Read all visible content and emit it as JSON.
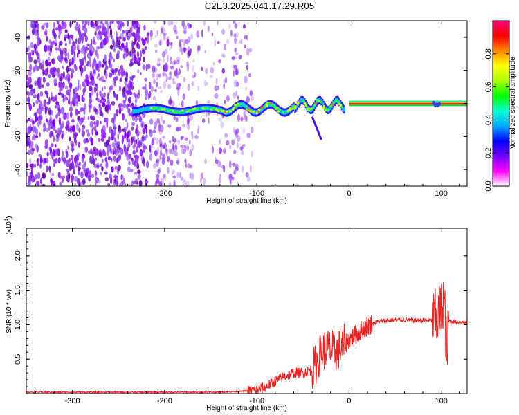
{
  "title": "C2E3.2025.041.17.29.R05",
  "colors": {
    "spectrum_dot": "#8a2be2",
    "snr_line": "#ee2222",
    "colorbar": [
      "#ffffff",
      "#ff00ff",
      "#7000ff",
      "#0000ff",
      "#00aaff",
      "#00ffcc",
      "#00ff00",
      "#aaff00",
      "#ffff00",
      "#ff8800",
      "#ff0000",
      "#ff0080"
    ]
  },
  "chart_data": [
    {
      "type": "heatmap",
      "title": "",
      "xlabel": "Height of straight line (km)",
      "ylabel": "Frequency (Hz)",
      "xlim": [
        -350,
        128
      ],
      "ylim": [
        -50,
        50
      ],
      "xticks": [
        -300,
        -200,
        -100,
        0,
        100
      ],
      "yticks": [
        -40,
        -20,
        0,
        20,
        40
      ],
      "colorbar": {
        "label": "Normalized spectral amplitude",
        "range": [
          0,
          1
        ],
        "ticks": [
          "0.0",
          "0.2",
          "0.4",
          "0.6",
          "0.8"
        ]
      },
      "features": [
        {
          "description": "broadband noise",
          "x_range": [
            -350,
            -110
          ],
          "y_range": [
            -50,
            50
          ]
        },
        {
          "description": "signal trace near 0 Hz",
          "x_range": [
            -235,
            -5
          ],
          "y_center": 0
        },
        {
          "description": "strong constant line at 0 Hz",
          "x_range": [
            0,
            128
          ],
          "y_center": 0
        },
        {
          "description": "branch",
          "points": [
            [
              -40,
              -8
            ],
            [
              -30,
              -22
            ]
          ]
        }
      ]
    },
    {
      "type": "line",
      "title": "",
      "xlabel": "Height of straight line (km)",
      "ylabel": "SNR (10 * v/v)",
      "multiplier": "(x10",
      "multiplier_exp": "4",
      "xlim": [
        -350,
        128
      ],
      "ylim": [
        0,
        2.4
      ],
      "xticks": [
        -300,
        -200,
        -100,
        0,
        100
      ],
      "yticks": [
        "0.5",
        "1.0",
        "1.5",
        "2.0"
      ],
      "series": [
        {
          "x": [
            -350,
            -300,
            -200,
            -150,
            -120,
            -100,
            -90,
            -80,
            -70,
            -60,
            -50,
            -40,
            -35,
            -30,
            -25,
            -20,
            -15,
            -10,
            -5,
            0,
            10,
            20,
            30,
            40,
            50,
            60,
            70,
            80,
            90,
            95,
            100,
            102,
            104,
            106,
            108,
            110,
            115,
            120,
            128
          ],
          "y": [
            0.02,
            0.02,
            0.02,
            0.02,
            0.03,
            0.05,
            0.1,
            0.18,
            0.25,
            0.3,
            0.3,
            0.35,
            0.45,
            0.6,
            0.65,
            0.65,
            0.6,
            0.65,
            0.72,
            0.78,
            0.88,
            0.98,
            1.04,
            1.06,
            1.07,
            1.07,
            1.06,
            1.06,
            1.06,
            1.08,
            1.2,
            1.4,
            1.15,
            0.5,
            1.05,
            1.05,
            1.04,
            1.04,
            1.03
          ]
        }
      ]
    }
  ]
}
